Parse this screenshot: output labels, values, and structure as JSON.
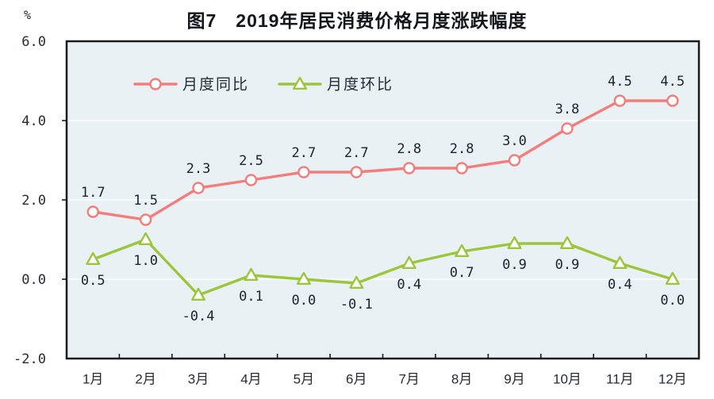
{
  "figure": {
    "title": "图7　2019年居民消费价格月度涨跌幅度",
    "unit_label": "%"
  },
  "chart_data": {
    "type": "line",
    "title": "图7 2019年居民消费价格月度涨跌幅度",
    "categories": [
      "1月",
      "2月",
      "3月",
      "4月",
      "5月",
      "6月",
      "7月",
      "8月",
      "9月",
      "10月",
      "11月",
      "12月"
    ],
    "series": [
      {
        "name": "月度同比",
        "marker": "circle",
        "color": "#F27D7D",
        "values": [
          1.7,
          1.5,
          2.3,
          2.5,
          2.7,
          2.7,
          2.8,
          2.8,
          3.0,
          3.8,
          4.5,
          4.5
        ]
      },
      {
        "name": "月度环比",
        "marker": "triangle",
        "color": "#9BC63B",
        "values": [
          0.5,
          1.0,
          -0.4,
          0.1,
          0.0,
          -0.1,
          0.4,
          0.7,
          0.9,
          0.9,
          0.4,
          0.0
        ]
      }
    ],
    "xlabel": "",
    "ylabel": "%",
    "ylim": [
      -2.0,
      6.0
    ],
    "yticks": [
      6.0,
      4.0,
      2.0,
      0.0,
      -2.0
    ],
    "grid": true,
    "gridline_values": [
      4.0,
      2.0,
      0.0
    ],
    "legend_position": "top-inside",
    "data_labels": true,
    "plot_bg_color": "#E9F1F5",
    "gridline_color": "#FDFEFE",
    "frame_color": "#1a1a1a",
    "label_color": "#20242E",
    "axis_text_color": "#262B35"
  }
}
